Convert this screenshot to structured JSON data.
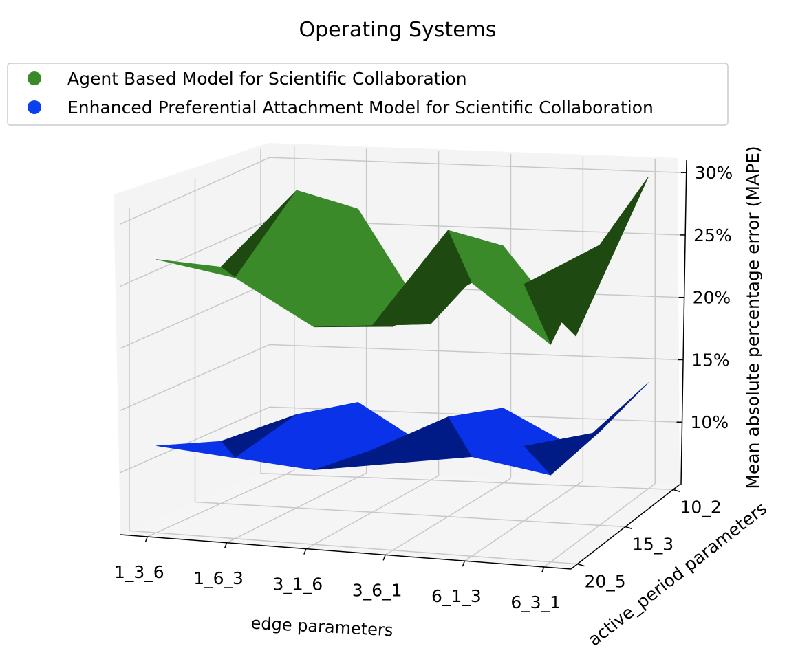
{
  "chart_data": {
    "type": "surface3d",
    "title": "Operating Systems",
    "xlabel": "edge parameters",
    "ylabel": "active_period parameters",
    "zlabel": "Mean absolute percentage error (MAPE)",
    "x_categories": [
      "1_3_6",
      "1_6_3",
      "3_1_6",
      "3_6_1",
      "6_1_3",
      "6_3_1"
    ],
    "y_categories": [
      "10_2",
      "15_3",
      "20_5"
    ],
    "z_ticks": [
      "10%",
      "15%",
      "20%",
      "25%",
      "30%"
    ],
    "z_tick_values": [
      10,
      15,
      20,
      25,
      30
    ],
    "zlim": [
      5,
      31
    ],
    "grid": true,
    "legend_position": "top",
    "series": [
      {
        "name": "Agent Based Model for Scientific Collaboration",
        "color": "#3a8a2a",
        "shade_color": "#1e4a12",
        "legend_color": "#3a8a2a",
        "z": [
          [
            21.5,
            26.5,
            17.5,
            24.0,
            17.0,
            30.0
          ],
          [
            24.0,
            30.5,
            20.0,
            28.0,
            24.0,
            27.5
          ],
          [
            27.0,
            26.0,
            22.5,
            23.0,
            27.0,
            22.5
          ]
        ]
      },
      {
        "name": "Enhanced Preferential Attachment Model for Scientific Collaboration",
        "color": "#0a32e8",
        "shade_color": "#001a86",
        "legend_color": "#0a40f0",
        "z": [
          [
            8.5,
            11.0,
            7.5,
            11.0,
            8.0,
            13.5
          ],
          [
            10.0,
            12.5,
            10.0,
            13.0,
            11.0,
            12.5
          ],
          [
            12.0,
            11.5,
            11.0,
            12.0,
            13.0,
            12.0
          ]
        ]
      }
    ]
  }
}
